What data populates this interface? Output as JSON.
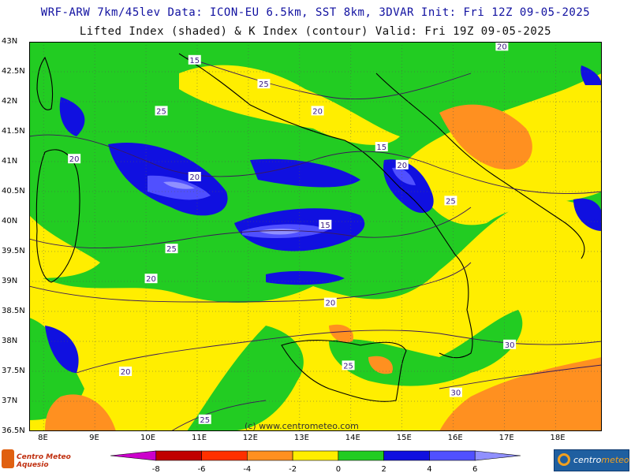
{
  "header": {
    "line1": "WRF-ARW 7km/45lev   Data: ICON-EU 6.5km, SST 8km, 3DVAR   Init: Fri 12Z 09-05-2025",
    "line2": "Lifted Index (shaded) & K Index (contour)   Valid: Fri 19Z 09-05-2025"
  },
  "axes": {
    "lat_labels": [
      "43N",
      "42.5N",
      "42N",
      "41.5N",
      "41N",
      "40.5N",
      "40N",
      "39.5N",
      "39N",
      "38.5N",
      "38N",
      "37.5N",
      "37N",
      "36.5N"
    ],
    "lon_labels": [
      "8E",
      "9E",
      "10E",
      "11E",
      "12E",
      "13E",
      "14E",
      "15E",
      "16E",
      "17E",
      "18E"
    ]
  },
  "contour_labels": [
    {
      "text": "15",
      "lon": 10.95,
      "lat": 42.7
    },
    {
      "text": "25",
      "lon": 12.3,
      "lat": 42.3
    },
    {
      "text": "25",
      "lon": 10.3,
      "lat": 41.85
    },
    {
      "text": "20",
      "lon": 13.35,
      "lat": 41.85
    },
    {
      "text": "15",
      "lon": 14.6,
      "lat": 41.25
    },
    {
      "text": "20",
      "lon": 8.6,
      "lat": 41.05
    },
    {
      "text": "20",
      "lon": 15.0,
      "lat": 40.95
    },
    {
      "text": "20",
      "lon": 10.95,
      "lat": 40.75
    },
    {
      "text": "25",
      "lon": 15.95,
      "lat": 40.35
    },
    {
      "text": "15",
      "lon": 13.5,
      "lat": 39.95
    },
    {
      "text": "25",
      "lon": 10.5,
      "lat": 39.55
    },
    {
      "text": "20",
      "lon": 10.1,
      "lat": 39.05
    },
    {
      "text": "20",
      "lon": 13.6,
      "lat": 38.65
    },
    {
      "text": "30",
      "lon": 17.1,
      "lat": 37.95
    },
    {
      "text": "25",
      "lon": 13.95,
      "lat": 37.6
    },
    {
      "text": "20",
      "lon": 9.6,
      "lat": 37.5
    },
    {
      "text": "30",
      "lon": 16.05,
      "lat": 37.15
    },
    {
      "text": "25",
      "lon": 11.15,
      "lat": 36.7
    },
    {
      "text": "20",
      "lon": 16.95,
      "lat": 42.93
    }
  ],
  "credit": "(c) www.centrometeo.com",
  "colorbar": {
    "tick_labels": [
      "-8",
      "-6",
      "-4",
      "-2",
      "0",
      "2",
      "4",
      "6"
    ],
    "colors": [
      "#cc00cc",
      "#c00000",
      "#ff3000",
      "#ff9020",
      "#ffee00",
      "#22cc22",
      "#1010e0",
      "#5050ff",
      "#9090ff"
    ]
  },
  "logos": {
    "left_text": "Centro Meteo Aquesio",
    "right_text_a": "centro",
    "right_text_b": "meteo"
  },
  "colors": {
    "yellow": "#ffee00",
    "green": "#22cc22",
    "orange": "#ff9020",
    "blue": "#1010e0",
    "lightblue": "#5050ff",
    "paleblue": "#9090ff",
    "contour": "#3a1a5a",
    "contour_label": "#3a1a80"
  }
}
